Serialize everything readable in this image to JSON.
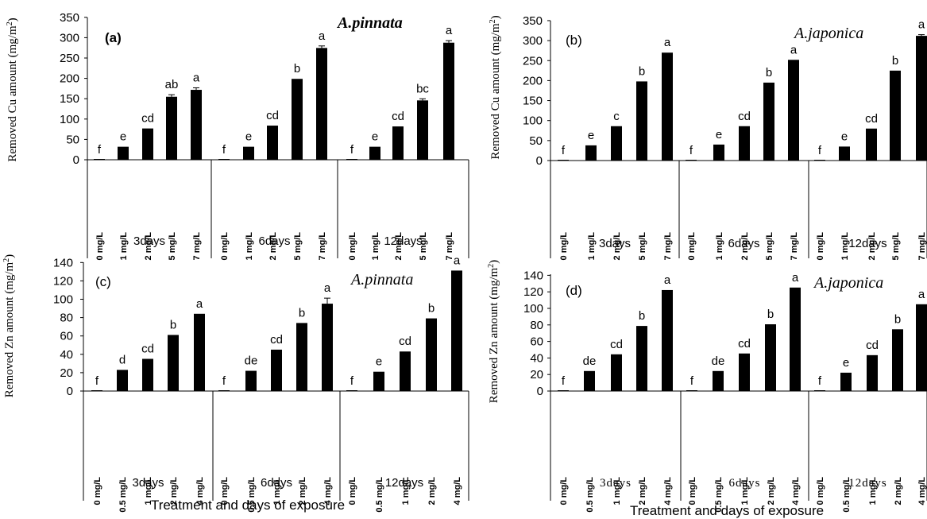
{
  "chart_data": [
    {
      "type": "bar",
      "panel_label": "(a)",
      "species": "A.pinnata",
      "ylabel": "Removed Cu amount (mg/m2)",
      "ylabel_main": "Removed Cu amount (mg/m",
      "ylabel_sup": "2",
      "ylabel_end": ")",
      "xlabel": "",
      "ylim": [
        0,
        350
      ],
      "yticks": [
        "0",
        "50",
        "100",
        "150",
        "200",
        "250",
        "300",
        "350"
      ],
      "groups": [
        "3days",
        "6days",
        "12days"
      ],
      "categories": [
        "0 mg/L",
        "1 mg/L",
        "2 mg/L",
        "5 mg/L",
        "7 mg/L"
      ],
      "values": [
        [
          0,
          32,
          77,
          155,
          172
        ],
        [
          0,
          32,
          84,
          199,
          275
        ],
        [
          0,
          32,
          82,
          146,
          288
        ]
      ],
      "errors": [
        [
          0,
          0,
          0,
          5,
          5
        ],
        [
          0,
          0,
          0,
          0,
          5
        ],
        [
          0,
          0,
          0,
          4,
          5
        ]
      ],
      "letters": [
        [
          "f",
          "e",
          "cd",
          "ab",
          "a"
        ],
        [
          "f",
          "e",
          "cd",
          "b",
          "a"
        ],
        [
          "f",
          "e",
          "cd",
          "bc",
          "a"
        ]
      ]
    },
    {
      "type": "bar",
      "panel_label": "(b)",
      "species": "A.japonica",
      "ylabel": "Removed Cu amount (mg/m2)",
      "ylabel_main": "Removed Cu amount (mg/m",
      "ylabel_sup": "2",
      "ylabel_end": ")",
      "xlabel": "",
      "ylim": [
        0,
        350
      ],
      "yticks": [
        "0",
        "50",
        "100",
        "150",
        "200",
        "250",
        "300",
        "350"
      ],
      "groups": [
        "3days",
        "6days",
        "12days"
      ],
      "categories": [
        "0 mg/L",
        "1 mg/L",
        "2 mg/L",
        "5 mg/L",
        "7 mg/L"
      ],
      "values": [
        [
          0,
          38,
          86,
          198,
          270
        ],
        [
          0,
          40,
          86,
          195,
          252
        ],
        [
          0,
          35,
          80,
          225,
          312
        ]
      ],
      "errors": [
        [
          0,
          0,
          0,
          0,
          0
        ],
        [
          0,
          0,
          0,
          0,
          0
        ],
        [
          0,
          0,
          0,
          0,
          3
        ]
      ],
      "letters": [
        [
          "f",
          "e",
          "c",
          "b",
          "a"
        ],
        [
          "f",
          "e",
          "cd",
          "b",
          "a"
        ],
        [
          "f",
          "e",
          "cd",
          "b",
          "a"
        ]
      ]
    },
    {
      "type": "bar",
      "panel_label": "(c)",
      "species": "A.pinnata",
      "ylabel": "Removed Zn amount (mg/m2)",
      "ylabel_main": "Removed Zn amount (mg/m",
      "ylabel_sup": "2",
      "ylabel_end": ")",
      "xlabel": "Treatment and days of exposure",
      "ylim": [
        0,
        140
      ],
      "yticks": [
        "0",
        "20",
        "40",
        "60",
        "80",
        "100",
        "120",
        "140"
      ],
      "groups": [
        "3days",
        "6days",
        "12days"
      ],
      "categories": [
        "0 mg/L",
        "0.5 mg/L",
        "1 mg/L",
        "2 mg/L",
        "4 mg/L"
      ],
      "values": [
        [
          0,
          23,
          35,
          61,
          84
        ],
        [
          0,
          22,
          45,
          74,
          95
        ],
        [
          0,
          21,
          43,
          79,
          131
        ]
      ],
      "errors": [
        [
          0,
          0,
          0,
          0,
          0
        ],
        [
          0,
          0,
          0,
          0,
          6
        ],
        [
          0,
          0,
          0,
          0,
          0
        ]
      ],
      "letters": [
        [
          "f",
          "d",
          "cd",
          "b",
          "a"
        ],
        [
          "f",
          "de",
          "cd",
          "b",
          "a"
        ],
        [
          "f",
          "e",
          "cd",
          "b",
          "a"
        ]
      ]
    },
    {
      "type": "bar",
      "panel_label": "(d)",
      "species": "A.japonica",
      "ylabel": "Removed Zn amount (mg/m2)",
      "ylabel_main": "Removed Zn amount (mg/m",
      "ylabel_sup": "2",
      "ylabel_end": ")",
      "xlabel": "Treatment and days of exposure",
      "ylim": [
        0,
        140
      ],
      "yticks": [
        "0",
        "20",
        "40",
        "60",
        "80",
        "100",
        "120",
        "140"
      ],
      "groups": [
        "3days",
        "6days",
        "12days"
      ],
      "categories": [
        "0 mg/L",
        "0.5 mg/L",
        "1 mg/L",
        "2 mg/L",
        "4 mg/L"
      ],
      "values": [
        [
          0,
          24,
          44,
          78,
          121
        ],
        [
          0,
          24,
          45,
          80,
          124
        ],
        [
          0,
          22,
          43,
          74,
          104
        ]
      ],
      "errors": [
        [
          0,
          0,
          0,
          0,
          0
        ],
        [
          0,
          0,
          0,
          0,
          0
        ],
        [
          0,
          0,
          0,
          0,
          0
        ]
      ],
      "letters": [
        [
          "f",
          "de",
          "cd",
          "b",
          "a"
        ],
        [
          "f",
          "de",
          "cd",
          "b",
          "a"
        ],
        [
          "f",
          "e",
          "cd",
          "b",
          "a"
        ]
      ]
    }
  ],
  "colors": {
    "bar": "#000000",
    "axis": "#000000",
    "background": "#ffffff"
  }
}
